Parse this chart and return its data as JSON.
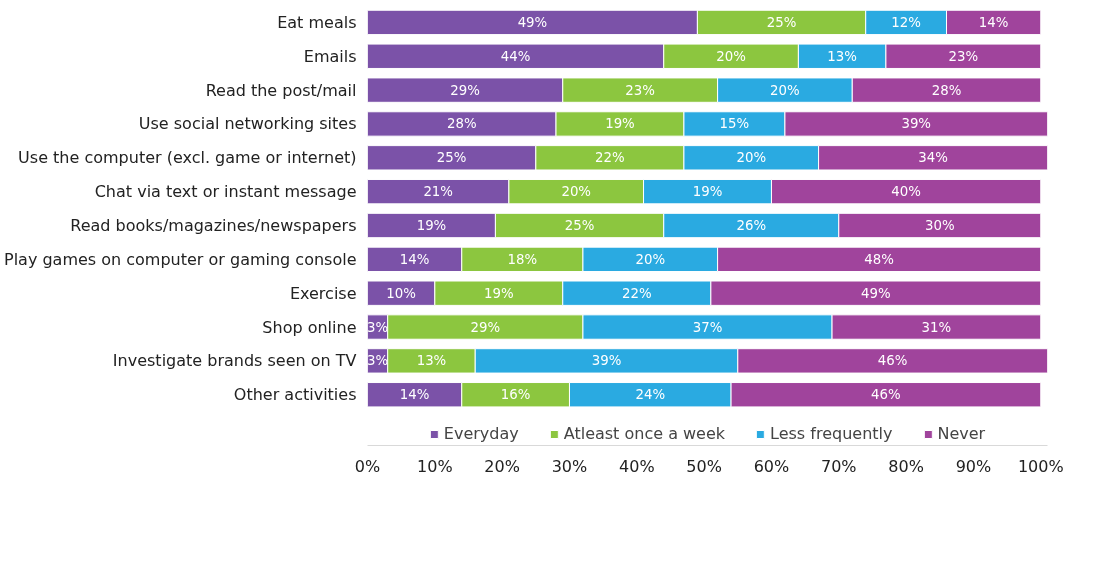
{
  "chart_data": {
    "type": "bar",
    "orientation": "horizontal",
    "stacked": true,
    "categories": [
      "Eat meals",
      "Emails",
      "Read the post/mail",
      "Use social networking sites",
      "Use the computer (excl. game or internet)",
      "Chat via text or instant message",
      "Read books/magazines/newspapers",
      "Play games on computer or gaming console",
      "Exercise",
      "Shop online",
      "Investigate brands seen on TV",
      "Other activities"
    ],
    "series": [
      {
        "name": "Everyday",
        "color": "#7b52a8",
        "values": [
          49,
          44,
          29,
          28,
          25,
          21,
          19,
          14,
          10,
          3,
          3,
          14
        ],
        "value_labels": [
          "49%",
          "44%",
          "29%",
          "28%",
          "25%",
          "21%",
          "19%",
          "14%",
          "10%",
          "3%",
          "3%",
          "14%"
        ]
      },
      {
        "name": "Atleast once a week",
        "color": "#8cc63f",
        "values": [
          25,
          20,
          23,
          19,
          22,
          20,
          25,
          18,
          19,
          29,
          13,
          16
        ],
        "value_labels": [
          "25%",
          "20%",
          "23%",
          "19%",
          "22%",
          "20%",
          "25%",
          "18%",
          "19%",
          "29%",
          "13%",
          "16%"
        ]
      },
      {
        "name": "Less frequently",
        "color": "#2aaae1",
        "values": [
          12,
          13,
          20,
          15,
          20,
          19,
          26,
          20,
          22,
          37,
          39,
          24
        ],
        "value_labels": [
          "12%",
          "13%",
          "20%",
          "15%",
          "20%",
          "19%",
          "26%",
          "20%",
          "22%",
          "37%",
          "39%",
          "24%"
        ]
      },
      {
        "name": "Never",
        "color": "#a0449c",
        "values": [
          14,
          23,
          28,
          39,
          34,
          40,
          30,
          48,
          49,
          31,
          46,
          46
        ],
        "value_labels": [
          "14%",
          "23%",
          "28%",
          "39%",
          "34%",
          "40%",
          "30%",
          "48%",
          "49%",
          "31%",
          "46%",
          "46%"
        ]
      }
    ],
    "xlim": [
      0,
      101
    ],
    "xticks": [
      {
        "value": 0,
        "label": "0%"
      },
      {
        "value": 10,
        "label": "10%"
      },
      {
        "value": 20,
        "label": "20%"
      },
      {
        "value": 30,
        "label": "30%"
      },
      {
        "value": 40,
        "label": "40%"
      },
      {
        "value": 50,
        "label": "50%"
      },
      {
        "value": 60,
        "label": "60%"
      },
      {
        "value": 70,
        "label": "70%"
      },
      {
        "value": 80,
        "label": "80%"
      },
      {
        "value": 90,
        "label": "90%"
      },
      {
        "value": 100,
        "label": "100%"
      }
    ],
    "grid": false,
    "legend": "bottom"
  }
}
